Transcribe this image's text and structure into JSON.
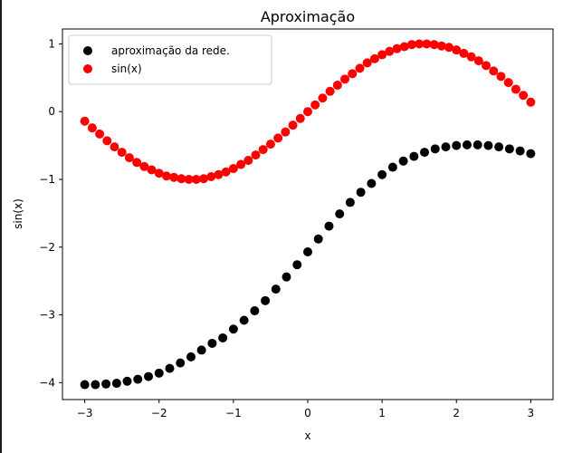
{
  "chart_data": {
    "type": "scatter",
    "title": "Aproximação",
    "xlabel": "x",
    "ylabel": "sin(x)",
    "xlim": [
      -3.3,
      3.3
    ],
    "ylim": [
      -4.25,
      1.22
    ],
    "xticks": [
      -3,
      -2,
      -1,
      0,
      1,
      2,
      3
    ],
    "xtick_labels": [
      "−3",
      "−2",
      "−1",
      "0",
      "1",
      "2",
      "3"
    ],
    "yticks": [
      -4,
      -3,
      -2,
      -1,
      0,
      1
    ],
    "ytick_labels": [
      "−4",
      "−3",
      "−2",
      "−1",
      "0",
      "1"
    ],
    "legend_position": "top-left",
    "grid": false,
    "series": [
      {
        "name": "aproximação da rede.",
        "color": "#000000",
        "x": [
          -3.0,
          -2.857,
          -2.714,
          -2.571,
          -2.429,
          -2.286,
          -2.143,
          -2.0,
          -1.857,
          -1.714,
          -1.571,
          -1.429,
          -1.286,
          -1.143,
          -1.0,
          -0.857,
          -0.714,
          -0.571,
          -0.429,
          -0.286,
          -0.143,
          0.0,
          0.143,
          0.286,
          0.429,
          0.571,
          0.714,
          0.857,
          1.0,
          1.143,
          1.286,
          1.429,
          1.571,
          1.714,
          1.857,
          2.0,
          2.143,
          2.286,
          2.429,
          2.571,
          2.714,
          2.857,
          3.0
        ],
        "y": [
          -4.03,
          -4.03,
          -4.02,
          -4.01,
          -3.98,
          -3.95,
          -3.91,
          -3.86,
          -3.79,
          -3.71,
          -3.62,
          -3.52,
          -3.42,
          -3.34,
          -3.21,
          -3.08,
          -2.94,
          -2.79,
          -2.62,
          -2.44,
          -2.26,
          -2.07,
          -1.88,
          -1.69,
          -1.51,
          -1.34,
          -1.19,
          -1.06,
          -0.93,
          -0.82,
          -0.73,
          -0.66,
          -0.6,
          -0.55,
          -0.52,
          -0.5,
          -0.49,
          -0.49,
          -0.5,
          -0.52,
          -0.55,
          -0.58,
          -0.62
        ]
      },
      {
        "name": "sin(x)",
        "color": "#ff0000",
        "x": [
          -3.0,
          -2.9,
          -2.8,
          -2.7,
          -2.6,
          -2.5,
          -2.4,
          -2.3,
          -2.2,
          -2.1,
          -2.0,
          -1.9,
          -1.8,
          -1.7,
          -1.6,
          -1.5,
          -1.4,
          -1.3,
          -1.2,
          -1.1,
          -1.0,
          -0.9,
          -0.8,
          -0.7,
          -0.6,
          -0.5,
          -0.4,
          -0.3,
          -0.2,
          -0.1,
          0.0,
          0.1,
          0.2,
          0.3,
          0.4,
          0.5,
          0.6,
          0.7,
          0.8,
          0.9,
          1.0,
          1.1,
          1.2,
          1.3,
          1.4,
          1.5,
          1.6,
          1.7,
          1.8,
          1.9,
          2.0,
          2.1,
          2.2,
          2.3,
          2.4,
          2.5,
          2.6,
          2.7,
          2.8,
          2.9,
          3.0
        ],
        "y": [
          -0.14,
          -0.24,
          -0.33,
          -0.43,
          -0.52,
          -0.6,
          -0.68,
          -0.75,
          -0.81,
          -0.86,
          -0.91,
          -0.95,
          -0.97,
          -0.99,
          -1.0,
          -1.0,
          -0.99,
          -0.96,
          -0.93,
          -0.89,
          -0.84,
          -0.78,
          -0.72,
          -0.64,
          -0.56,
          -0.48,
          -0.39,
          -0.3,
          -0.2,
          -0.1,
          0.0,
          0.1,
          0.2,
          0.3,
          0.39,
          0.48,
          0.56,
          0.64,
          0.72,
          0.78,
          0.84,
          0.89,
          0.93,
          0.96,
          0.99,
          1.0,
          1.0,
          0.99,
          0.97,
          0.95,
          0.91,
          0.86,
          0.81,
          0.75,
          0.68,
          0.6,
          0.52,
          0.43,
          0.33,
          0.24,
          0.14
        ]
      }
    ]
  }
}
